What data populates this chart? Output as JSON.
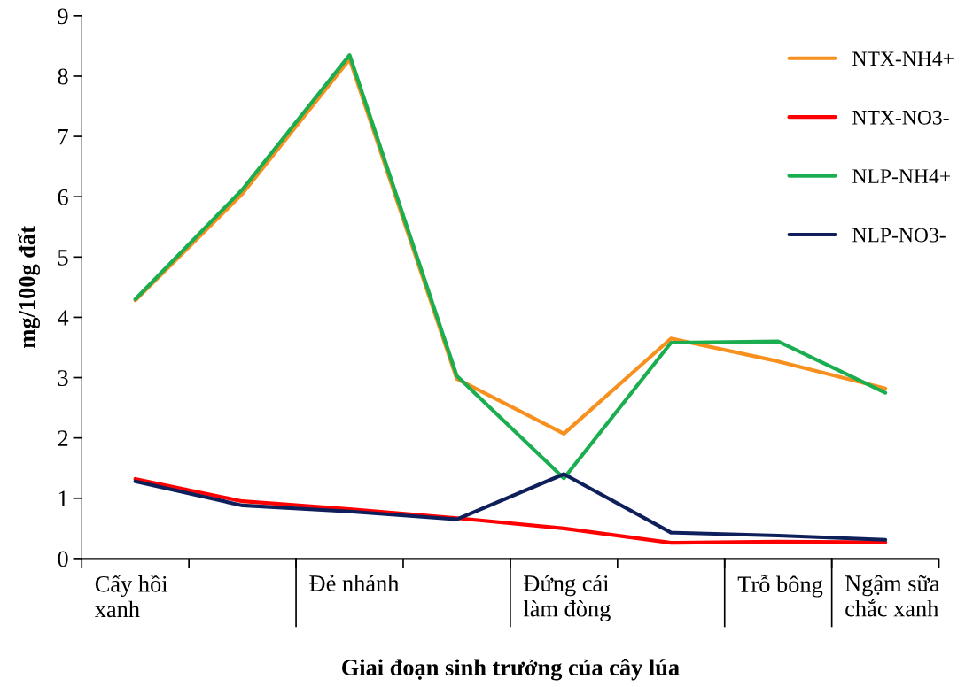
{
  "chart_data": {
    "type": "line",
    "categories": [
      "Cấy hồi\nxanh",
      null,
      "Đẻ nhánh",
      null,
      "Đứng cái\nlàm đòng",
      null,
      "Trỗ bông",
      "Ngậm sữa\nchắc xanh"
    ],
    "xlabel": "Giai đoạn sinh trưởng của cây lúa",
    "ylabel": "mg/100g đất",
    "ylim": [
      0,
      9
    ],
    "yticks": [
      0,
      1,
      2,
      3,
      4,
      5,
      6,
      7,
      8,
      9
    ],
    "grid": false,
    "legend": "top right",
    "marker": "none",
    "line_style": "solid",
    "series": [
      {
        "name": "NTX-NH4+",
        "color": "#f7901e",
        "values": [
          4.28,
          6.05,
          8.28,
          2.98,
          2.07,
          3.65,
          3.27,
          2.82
        ]
      },
      {
        "name": "NTX-NO3-",
        "color": "#ff0000",
        "values": [
          1.32,
          0.95,
          0.82,
          0.67,
          0.5,
          0.26,
          0.28,
          0.27
        ]
      },
      {
        "name": "NLP-NH4+",
        "color": "#1aae50",
        "values": [
          4.3,
          6.12,
          8.35,
          3.03,
          1.33,
          3.58,
          3.6,
          2.75
        ]
      },
      {
        "name": "NLP-NO3-",
        "color": "#0e1f5b",
        "values": [
          1.28,
          0.88,
          0.78,
          0.65,
          1.4,
          0.43,
          0.38,
          0.31
        ]
      }
    ]
  }
}
